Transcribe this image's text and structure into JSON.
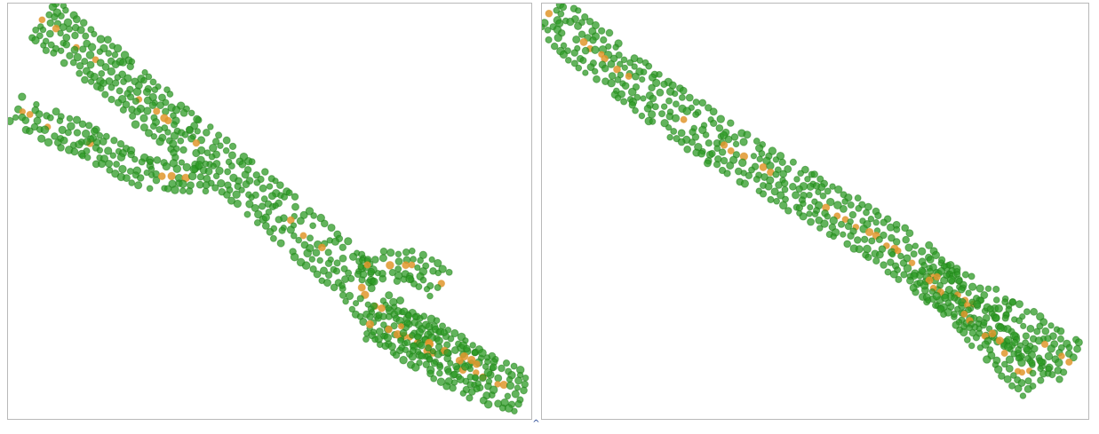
{
  "colors": {
    "background": "#ffffff",
    "panel_border": "#b9b9b9",
    "point_fill": "#2e9b25",
    "point_stroke": "#1f7d18",
    "center_fill": "#e0962c",
    "divider_glyph": "#1c3f8f"
  },
  "panels": [
    {
      "id": "left",
      "description_icon": "green-point-cloud-branched"
    },
    {
      "id": "right",
      "description_icon": "green-point-cloud-straight"
    }
  ],
  "divider": {
    "icon": "caret-up-icon",
    "glyph": "^"
  }
}
